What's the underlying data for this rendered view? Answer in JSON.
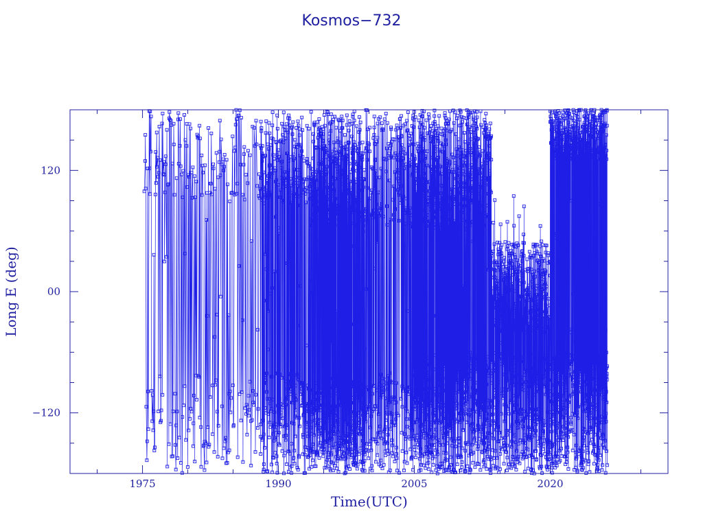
{
  "chart_data": {
    "type": "line",
    "title": "Kosmos−732",
    "xlabel": "Time(UTC)",
    "ylabel": "Long E (deg)",
    "xlim": [
      1967,
      2033
    ],
    "ylim": [
      -180,
      180
    ],
    "x_ticks": [
      {
        "value": 1975,
        "label": "1975"
      },
      {
        "value": 1990,
        "label": "1990"
      },
      {
        "value": 2005,
        "label": "2005"
      },
      {
        "value": 2020,
        "label": "2020"
      }
    ],
    "y_ticks": [
      {
        "value": 120,
        "label": "120"
      },
      {
        "value": 0,
        "label": "00"
      },
      {
        "value": -120,
        "label": "−120"
      }
    ],
    "x_minor_step": 5,
    "y_minor_step": 30,
    "grid": false,
    "color": "#1e1ee6",
    "frame_color": "#1e1ea0",
    "marker": "square",
    "series_segments": [
      {
        "x_start": 1975.2,
        "x_end": 1988.0,
        "upper": [
          90,
          180
        ],
        "lower": [
          -180,
          -80
        ],
        "density": "sparse",
        "points": 260
      },
      {
        "x_start": 1988.0,
        "x_end": 1993.5,
        "upper": [
          85,
          180
        ],
        "lower": [
          -180,
          -80
        ],
        "density": "medium",
        "points": 360
      },
      {
        "x_start": 1993.5,
        "x_end": 1999.5,
        "upper": [
          65,
          180
        ],
        "lower": [
          -180,
          -85
        ],
        "density": "dense",
        "points": 700
      },
      {
        "x_start": 1999.5,
        "x_end": 2004.8,
        "upper": [
          65,
          180
        ],
        "lower": [
          -180,
          -80
        ],
        "density": "medium",
        "points": 320
      },
      {
        "x_start": 2004.8,
        "x_end": 2013.5,
        "upper": [
          60,
          180
        ],
        "lower": [
          -180,
          -60
        ],
        "density": "dense",
        "points": 1100
      },
      {
        "x_start": 2013.5,
        "x_end": 2020.0,
        "upper": [
          -40,
          50
        ],
        "lower": [
          -180,
          -60
        ],
        "density": "dense",
        "points": 700
      },
      {
        "x_start": 2020.0,
        "x_end": 2026.3,
        "upper": [
          130,
          180
        ],
        "lower": [
          -180,
          -60
        ],
        "density": "dense",
        "points": 800
      }
    ]
  }
}
